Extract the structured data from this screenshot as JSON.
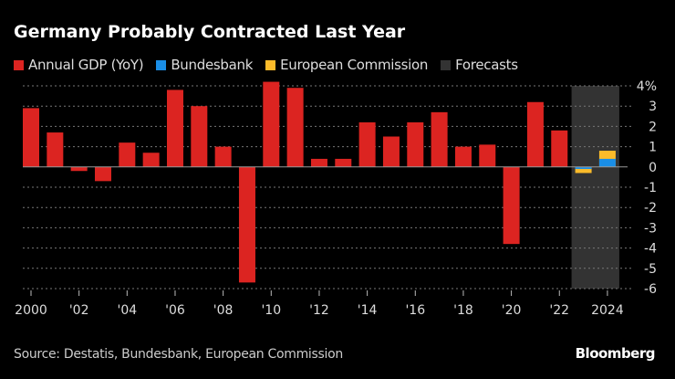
{
  "colors": {
    "gdp": "#dc2421",
    "bundesbank": "#1a8ee6",
    "commission": "#fbbb2a",
    "forecasts": "#333333",
    "grid": "#777777",
    "axis_text": "#dddddd"
  },
  "chart_data": {
    "type": "bar",
    "title": "Germany Probably Contracted Last Year",
    "legend": [
      "Annual GDP (YoY)",
      "Bundesbank",
      "European Commission",
      "Forecasts"
    ],
    "legend_placement": "top-left",
    "ylim": [
      -6,
      4
    ],
    "yticks": [
      4,
      3,
      2,
      1,
      0,
      -1,
      -2,
      -3,
      -4,
      -5,
      -6
    ],
    "ytick_labels": [
      "4%",
      "3",
      "2",
      "1",
      "0",
      "-1",
      "-2",
      "-3",
      "-4",
      "-5",
      "-6"
    ],
    "grid": true,
    "x": [
      2000,
      2001,
      2002,
      2003,
      2004,
      2005,
      2006,
      2007,
      2008,
      2009,
      2010,
      2011,
      2012,
      2013,
      2014,
      2015,
      2016,
      2017,
      2018,
      2019,
      2020,
      2021,
      2022,
      2023,
      2024
    ],
    "xtick_years": [
      2000,
      2002,
      2004,
      2006,
      2008,
      2010,
      2012,
      2014,
      2016,
      2018,
      2020,
      2022,
      2024
    ],
    "xtick_labels": [
      "2000",
      "'02",
      "'04",
      "'06",
      "'08",
      "'10",
      "'12",
      "'14",
      "'16",
      "'18",
      "'20",
      "'22",
      "2024"
    ],
    "series": [
      {
        "name": "Annual GDP (YoY)",
        "x": [
          2000,
          2001,
          2002,
          2003,
          2004,
          2005,
          2006,
          2007,
          2008,
          2009,
          2010,
          2011,
          2012,
          2013,
          2014,
          2015,
          2016,
          2017,
          2018,
          2019,
          2020,
          2021,
          2022
        ],
        "values": [
          2.9,
          1.7,
          -0.2,
          -0.7,
          1.2,
          0.7,
          3.8,
          3.0,
          1.0,
          -5.7,
          4.2,
          3.9,
          0.4,
          0.4,
          2.2,
          1.5,
          2.2,
          2.7,
          1.0,
          1.1,
          -3.8,
          3.2,
          1.8
        ]
      },
      {
        "name": "European Commission",
        "x": [
          2023,
          2024
        ],
        "values": [
          -0.3,
          0.8
        ]
      },
      {
        "name": "Bundesbank",
        "x": [
          2023,
          2024
        ],
        "values": [
          -0.1,
          0.4
        ]
      }
    ],
    "forecast_range": [
      2023,
      2024
    ]
  },
  "footer": {
    "source": "Source: Destatis, Bundesbank, European Commission",
    "brand": "Bloomberg"
  }
}
